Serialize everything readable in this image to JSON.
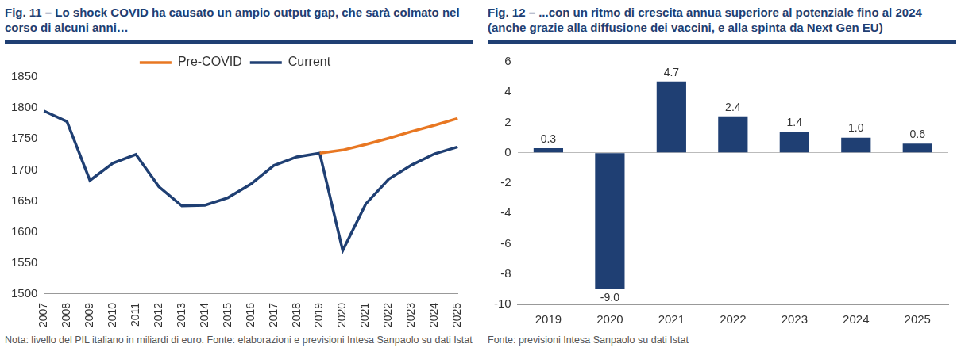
{
  "chart_data": [
    {
      "type": "line",
      "title": "Fig. 11 – Lo shock COVID ha causato un ampio output gap, che sarà colmato nel corso di alcuni anni…",
      "note": "Nota: livello del PIL italiano in miliardi di euro. Fonte: elaborazioni e previsioni Intesa Sanpaolo su dati Istat",
      "categories": [
        "2007",
        "2008",
        "2009",
        "2010",
        "2011",
        "2012",
        "2013",
        "2014",
        "2015",
        "2016",
        "2017",
        "2018",
        "2019",
        "2020",
        "2021",
        "2022",
        "2023",
        "2024",
        "2025"
      ],
      "series": [
        {
          "name": "Pre-COVID",
          "color": "#E87722",
          "values": [
            null,
            null,
            null,
            null,
            null,
            null,
            null,
            null,
            null,
            null,
            null,
            null,
            1727,
            1732,
            1741,
            1751,
            1762,
            1772,
            1783
          ]
        },
        {
          "name": "Current",
          "color": "#1F3F73",
          "values": [
            1795,
            1778,
            1683,
            1711,
            1725,
            1673,
            1642,
            1643,
            1655,
            1677,
            1707,
            1721,
            1727,
            1570,
            1645,
            1685,
            1708,
            1726,
            1737
          ]
        }
      ],
      "ylim": [
        1500,
        1850
      ],
      "yticks": [
        1500,
        1550,
        1600,
        1650,
        1700,
        1750,
        1800,
        1850
      ],
      "grid": false,
      "legend": "top"
    },
    {
      "type": "bar",
      "title": "Fig. 12 – ...con un ritmo di crescita annua superiore al potenziale fino al 2024 (anche grazie alla diffusione dei vaccini, e alla spinta da Next Gen EU)",
      "note": "Fonte: previsioni Intesa Sanpaolo su dati Istat",
      "categories": [
        "2019",
        "2020",
        "2021",
        "2022",
        "2023",
        "2024",
        "2025"
      ],
      "values": [
        0.3,
        -9.0,
        4.7,
        2.4,
        1.4,
        1.0,
        0.6
      ],
      "value_labels": [
        "0.3",
        "-9.0",
        "4.7",
        "2.4",
        "1.4",
        "1.0",
        "0.6"
      ],
      "color": "#1F3F73",
      "ylim": [
        -10,
        6
      ],
      "yticks": [
        -10,
        -8,
        -6,
        -4,
        -2,
        0,
        2,
        4,
        6
      ],
      "grid": false,
      "data_labels": true
    }
  ]
}
